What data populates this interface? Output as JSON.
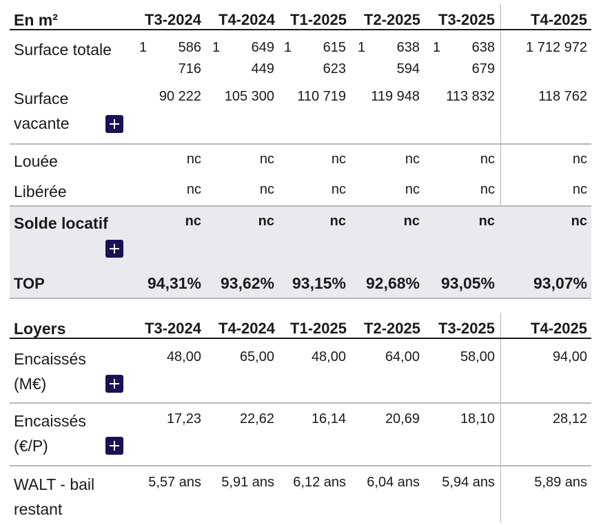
{
  "columns": [
    "T3-2024",
    "T4-2024",
    "T1-2025",
    "T2-2025",
    "T3-2025",
    "T4-2025"
  ],
  "surface_table": {
    "header_label": "En m²",
    "rows": {
      "surface_totale": {
        "label": "Surface totale",
        "values": [
          "1 586 716",
          "1 649 449",
          "1 615 623",
          "1 638 594",
          "1 638 679",
          "1 712 972"
        ]
      },
      "surface_vacante": {
        "label_line1": "Surface",
        "label_line2": "vacante",
        "values": [
          "90 222",
          "105 300",
          "110 719",
          "119 948",
          "113 832",
          "118 762"
        ]
      },
      "louee": {
        "label": "Louée",
        "values": [
          "nc",
          "nc",
          "nc",
          "nc",
          "nc",
          "nc"
        ]
      },
      "liberee": {
        "label": "Libérée",
        "values": [
          "nc",
          "nc",
          "nc",
          "nc",
          "nc",
          "nc"
        ]
      },
      "solde_locatif": {
        "label": "Solde locatif",
        "values": [
          "nc",
          "nc",
          "nc",
          "nc",
          "nc",
          "nc"
        ]
      },
      "top": {
        "label": "TOP",
        "values": [
          "94,31%",
          "93,62%",
          "93,15%",
          "92,68%",
          "93,05%",
          "93,07%"
        ]
      }
    }
  },
  "loyers_table": {
    "header_label": "Loyers",
    "rows": {
      "encaisses_meur": {
        "label_line1": "Encaissés",
        "label_line2": "(M€)",
        "values": [
          "48,00",
          "65,00",
          "48,00",
          "64,00",
          "58,00",
          "94,00"
        ]
      },
      "encaisses_eur_p": {
        "label_line1": "Encaissés",
        "label_line2": "(€/P)",
        "values": [
          "17,23",
          "22,62",
          "16,14",
          "20,69",
          "18,10",
          "28,12"
        ]
      },
      "walt": {
        "label_line1": "WALT - bail",
        "label_line2": "restant",
        "values": [
          "5,57 ans",
          "5,91 ans",
          "6,12 ans",
          "6,04 ans",
          "5,94 ans",
          "5,89 ans"
        ]
      }
    }
  }
}
